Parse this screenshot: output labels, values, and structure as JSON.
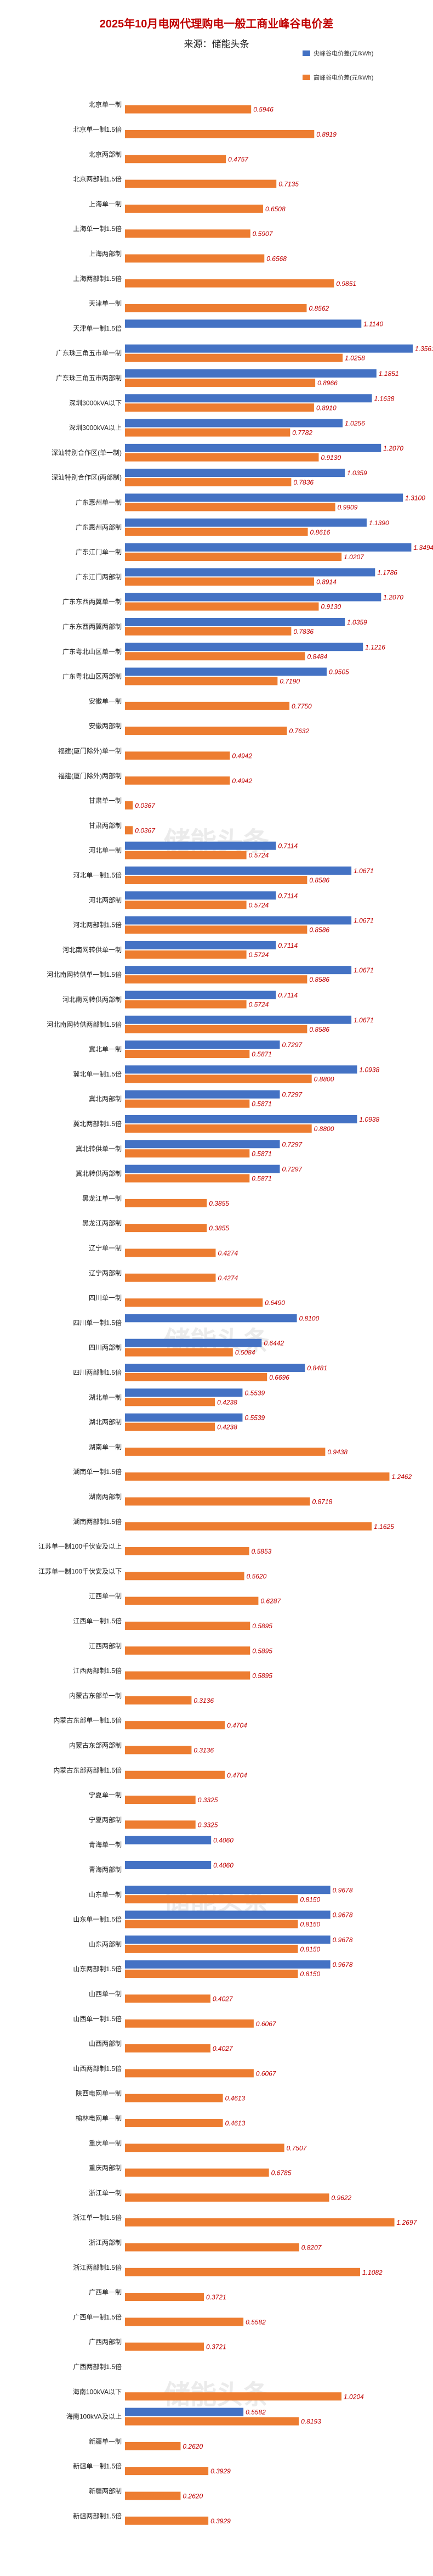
{
  "chart_data": {
    "type": "bar",
    "title": "2025年10月电网代理购电一般工商业峰谷电价差",
    "subtitle": "来源：储能头条",
    "watermark": "储能头条",
    "legend_position": "top-right",
    "colors": {
      "peak_valley": "#4472c4",
      "high_valley": "#ed7d31",
      "title": "#c00000",
      "label": "#c00000"
    },
    "series": [
      {
        "name": "尖峰谷电价差(元/kWh)",
        "color": "#4472c4"
      },
      {
        "name": "高峰谷电价差(元/kWh)",
        "color": "#ed7d31"
      }
    ],
    "categories": [
      "北京单一制",
      "北京单一制1.5倍",
      "北京两部制",
      "北京两部制1.5倍",
      "上海单一制",
      "上海单一制1.5倍",
      "上海两部制",
      "上海两部制1.5倍",
      "天津单一制",
      "天津单一制1.5倍",
      "广东珠三角五市单一制",
      "广东珠三角五市两部制",
      "深圳3000kVA以下",
      "深圳3000kVA以上",
      "深汕特别合作区(单一制)",
      "深汕特别合作区(两部制)",
      "广东惠州单一制",
      "广东惠州两部制",
      "广东江门单一制",
      "广东江门两部制",
      "广东东西两翼单一制",
      "广东东西两翼两部制",
      "广东粤北山区单一制",
      "广东粤北山区两部制",
      "安徽单一制",
      "安徽两部制",
      "福建(厦门除外)单一制",
      "福建(厦门除外)两部制",
      "甘肃单一制",
      "甘肃两部制",
      "河北单一制",
      "河北单一制1.5倍",
      "河北两部制",
      "河北两部制1.5倍",
      "河北南网转供单一制",
      "河北南网转供单一制1.5倍",
      "河北南网转供两部制",
      "河北南网转供两部制1.5倍",
      "冀北单一制",
      "冀北单一制1.5倍",
      "冀北两部制",
      "冀北两部制1.5倍",
      "冀北转供单一制",
      "冀北转供两部制",
      "黑龙江单一制",
      "黑龙江两部制",
      "辽宁单一制",
      "辽宁两部制",
      "四川单一制",
      "四川单一制1.5倍",
      "四川两部制",
      "四川两部制1.5倍",
      "湖北单一制",
      "湖北两部制",
      "湖南单一制",
      "湖南单一制1.5倍",
      "湖南两部制",
      "湖南两部制1.5倍",
      "江苏单一制100千伏安及以上",
      "江苏单一制100千伏安及以下",
      "江西单一制",
      "江西单一制1.5倍",
      "江西两部制",
      "江西两部制1.5倍",
      "内蒙古东部单一制",
      "内蒙古东部单一制1.5倍",
      "内蒙古东部两部制",
      "内蒙古东部两部制1.5倍",
      "宁夏单一制",
      "宁夏两部制",
      "青海单一制",
      "青海两部制",
      "山东单一制",
      "山东单一制1.5倍",
      "山东两部制",
      "山东两部制1.5倍",
      "山西单一制",
      "山西单一制1.5倍",
      "山西两部制",
      "山西两部制1.5倍",
      "陕西电网单一制",
      "榆林电网单一制",
      "重庆单一制",
      "重庆两部制",
      "浙江单一制",
      "浙江单一制1.5倍",
      "浙江两部制",
      "浙江两部制1.5倍",
      "广西单一制",
      "广西单一制1.5倍",
      "广西两部制",
      "广西两部制1.5倍",
      "海南100kVA以下",
      "海南100kVA及以上",
      "新疆单一制",
      "新疆单一制1.5倍",
      "新疆两部制",
      "新疆两部制1.5倍"
    ],
    "values_peak": [
      null,
      null,
      null,
      null,
      null,
      null,
      null,
      null,
      null,
      1.114,
      1.3561,
      1.1851,
      1.1638,
      1.0256,
      1.207,
      1.0359,
      1.31,
      1.139,
      1.3494,
      1.1786,
      1.207,
      1.0359,
      1.1216,
      0.9505,
      null,
      null,
      null,
      null,
      null,
      null,
      0.7114,
      1.0671,
      0.7114,
      1.0671,
      0.7114,
      1.0671,
      0.7114,
      1.0671,
      0.7297,
      1.0938,
      0.7297,
      1.0938,
      0.7297,
      0.7297,
      null,
      null,
      null,
      null,
      null,
      0.81,
      0.6442,
      0.8481,
      0.5539,
      0.5539,
      null,
      null,
      null,
      null,
      null,
      null,
      null,
      null,
      null,
      null,
      null,
      null,
      null,
      null,
      null,
      null,
      0.406,
      0.406,
      0.9678,
      0.9678,
      0.9678,
      0.9678,
      null,
      null,
      null,
      null,
      null,
      null,
      null,
      null,
      null,
      null,
      null,
      null,
      null,
      null,
      null,
      null,
      null,
      0.5582,
      null,
      null,
      null,
      null
    ],
    "values_high": [
      0.5946,
      0.8919,
      0.4757,
      0.7135,
      0.6508,
      0.5907,
      0.6568,
      0.9851,
      0.8562,
      null,
      1.0258,
      0.8966,
      0.891,
      0.7782,
      0.913,
      0.7836,
      0.9909,
      0.8616,
      1.0207,
      0.8914,
      0.913,
      0.7836,
      0.8484,
      0.719,
      0.775,
      0.7632,
      0.4942,
      0.4942,
      0.0367,
      0.0367,
      0.5724,
      0.8586,
      0.5724,
      0.8586,
      0.5724,
      0.8586,
      0.5724,
      0.8586,
      0.5871,
      0.88,
      0.5871,
      0.88,
      0.5871,
      0.5871,
      0.3855,
      0.3855,
      0.4274,
      0.4274,
      0.649,
      null,
      0.5084,
      0.6696,
      0.4238,
      0.4238,
      0.9438,
      1.2462,
      0.8718,
      1.1625,
      0.5853,
      0.562,
      0.6287,
      0.5895,
      0.5895,
      0.5895,
      0.3136,
      0.4704,
      0.3136,
      0.4704,
      0.3325,
      0.3325,
      null,
      null,
      0.815,
      0.815,
      0.815,
      0.815,
      0.4027,
      0.6067,
      0.4027,
      0.6067,
      0.4613,
      0.4613,
      0.7507,
      0.6785,
      0.9622,
      1.2697,
      0.8207,
      1.1082,
      0.3721,
      0.5582,
      0.3721,
      null,
      1.0204,
      0.8193,
      0.262,
      0.3929,
      0.262,
      0.3929
    ],
    "xlim": [
      0,
      1.4
    ]
  }
}
